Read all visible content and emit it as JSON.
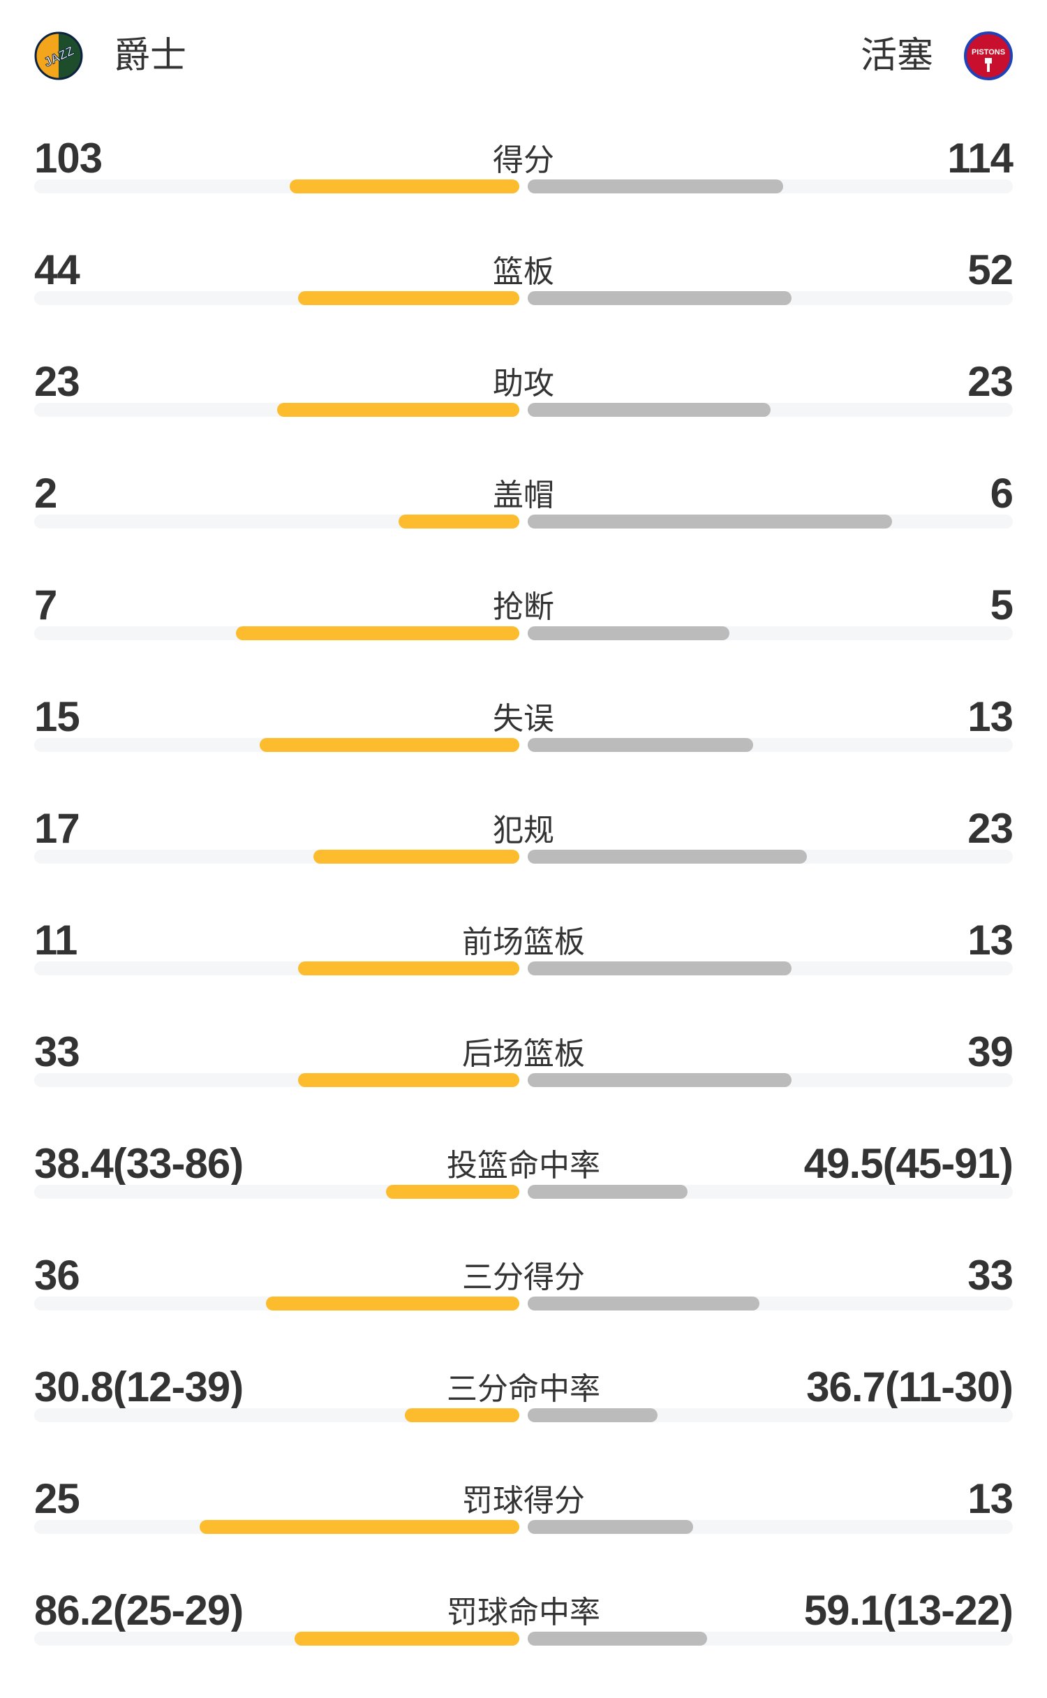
{
  "header": {
    "home": {
      "name": "爵士",
      "logo_icon": "utah-jazz-logo",
      "logo_text": "JAZZ"
    },
    "away": {
      "name": "活塞",
      "logo_icon": "detroit-pistons-logo",
      "logo_text": "PISTONS"
    }
  },
  "colors": {
    "home_bar": "#FCBC2E",
    "away_bar": "#BBBBBB",
    "track": "#F5F6F8",
    "text": "#333333"
  },
  "stats": [
    {
      "label": "得分",
      "home": "103",
      "away": "114",
      "home_fill": 0.474,
      "away_fill": 0.526
    },
    {
      "label": "篮板",
      "home": "44",
      "away": "52",
      "home_fill": 0.456,
      "away_fill": 0.544
    },
    {
      "label": "助攻",
      "home": "23",
      "away": "23",
      "home_fill": 0.5,
      "away_fill": 0.5
    },
    {
      "label": "盖帽",
      "home": "2",
      "away": "6",
      "home_fill": 0.249,
      "away_fill": 0.751
    },
    {
      "label": "抢断",
      "home": "7",
      "away": "5",
      "home_fill": 0.584,
      "away_fill": 0.416
    },
    {
      "label": "失误",
      "home": "15",
      "away": "13",
      "home_fill": 0.535,
      "away_fill": 0.465
    },
    {
      "label": "犯规",
      "home": "17",
      "away": "23",
      "home_fill": 0.425,
      "away_fill": 0.575
    },
    {
      "label": "前场篮板",
      "home": "11",
      "away": "13",
      "home_fill": 0.456,
      "away_fill": 0.544
    },
    {
      "label": "后场篮板",
      "home": "33",
      "away": "39",
      "home_fill": 0.456,
      "away_fill": 0.544
    },
    {
      "label": "投篮命中率",
      "home": "38.4(33-86)",
      "away": "49.5(45-91)",
      "home_fill": 0.275,
      "away_fill": 0.33
    },
    {
      "label": "三分得分",
      "home": "36",
      "away": "33",
      "home_fill": 0.522,
      "away_fill": 0.478
    },
    {
      "label": "三分命中率",
      "home": "30.8(12-39)",
      "away": "36.7(11-30)",
      "home_fill": 0.236,
      "away_fill": 0.267
    },
    {
      "label": "罚球得分",
      "home": "25",
      "away": "13",
      "home_fill": 0.659,
      "away_fill": 0.341
    },
    {
      "label": "罚球命中率",
      "home": "86.2(25-29)",
      "away": "59.1(13-22)",
      "home_fill": 0.463,
      "away_fill": 0.37
    }
  ]
}
